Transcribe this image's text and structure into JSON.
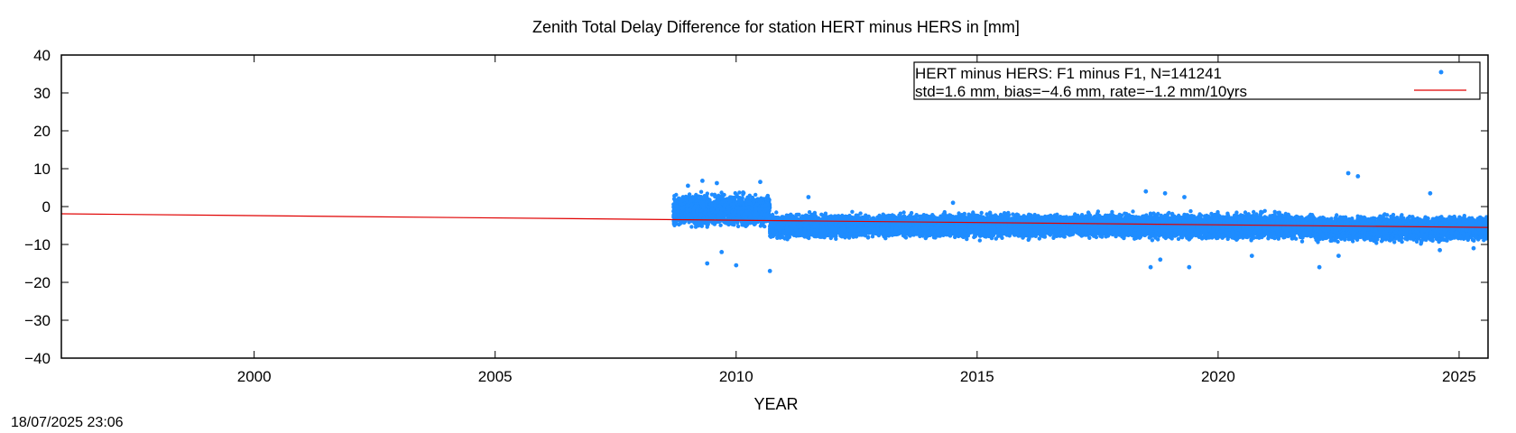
{
  "chart_data": {
    "type": "scatter",
    "title": "Zenith Total Delay Difference for station HERT minus HERS in [mm]",
    "xlabel": "YEAR",
    "ylabel": "",
    "xlim": [
      1996.0,
      2025.6
    ],
    "ylim": [
      -40,
      40
    ],
    "x_ticks": [
      2000,
      2005,
      2010,
      2015,
      2020,
      2025
    ],
    "y_ticks": [
      -40,
      -30,
      -20,
      -10,
      0,
      10,
      20,
      30,
      40
    ],
    "grid": false,
    "legend_position": "top-right",
    "point_color": "#1e8cff",
    "line_color": "#e00000",
    "legend": [
      {
        "label": "HERT minus HERS: F1 minus F1, N=141241",
        "marker": "point"
      },
      {
        "label": "std=1.6 mm, bias=−4.6 mm, rate=−1.2 mm/10yrs",
        "marker": "line"
      }
    ],
    "series": [
      {
        "type": "scatter-band",
        "segments": [
          {
            "x": [
              2008.7,
              2010.7
            ],
            "center": -1.0,
            "low": -6.0,
            "high": 4.0
          },
          {
            "x": [
              2010.7,
              2013.0
            ],
            "center": -5.2,
            "low": -9.0,
            "high": -1.5
          },
          {
            "x": [
              2013.0,
              2018.0
            ],
            "center": -5.0,
            "low": -9.0,
            "high": -1.5
          },
          {
            "x": [
              2018.0,
              2022.0
            ],
            "center": -5.2,
            "low": -9.5,
            "high": -1.5
          },
          {
            "x": [
              2022.0,
              2025.6
            ],
            "center": -5.8,
            "low": -10.0,
            "high": -2.0
          }
        ],
        "outliers": [
          {
            "x": 2009.0,
            "y": 5.5
          },
          {
            "x": 2009.3,
            "y": 6.8
          },
          {
            "x": 2009.6,
            "y": 6.2
          },
          {
            "x": 2010.5,
            "y": 6.5
          },
          {
            "x": 2009.4,
            "y": -15.0
          },
          {
            "x": 2010.0,
            "y": -15.5
          },
          {
            "x": 2010.7,
            "y": -17.0
          },
          {
            "x": 2009.7,
            "y": -12.0
          },
          {
            "x": 2011.5,
            "y": 2.5
          },
          {
            "x": 2014.5,
            "y": 1.0
          },
          {
            "x": 2018.5,
            "y": 4.0
          },
          {
            "x": 2018.9,
            "y": 3.5
          },
          {
            "x": 2018.6,
            "y": -16.0
          },
          {
            "x": 2018.8,
            "y": -14.0
          },
          {
            "x": 2019.4,
            "y": -16.0
          },
          {
            "x": 2019.3,
            "y": 2.5
          },
          {
            "x": 2020.7,
            "y": -13.0
          },
          {
            "x": 2022.1,
            "y": -16.0
          },
          {
            "x": 2022.5,
            "y": -13.0
          },
          {
            "x": 2022.7,
            "y": 8.8
          },
          {
            "x": 2022.9,
            "y": 8.0
          },
          {
            "x": 2024.4,
            "y": 3.5
          },
          {
            "x": 2024.6,
            "y": -11.5
          },
          {
            "x": 2025.3,
            "y": -11.0
          }
        ]
      },
      {
        "type": "line",
        "x": [
          1996.0,
          2025.6
        ],
        "y": [
          -1.9,
          -5.5
        ]
      }
    ]
  },
  "timestamp": "18/07/2025 23:06"
}
